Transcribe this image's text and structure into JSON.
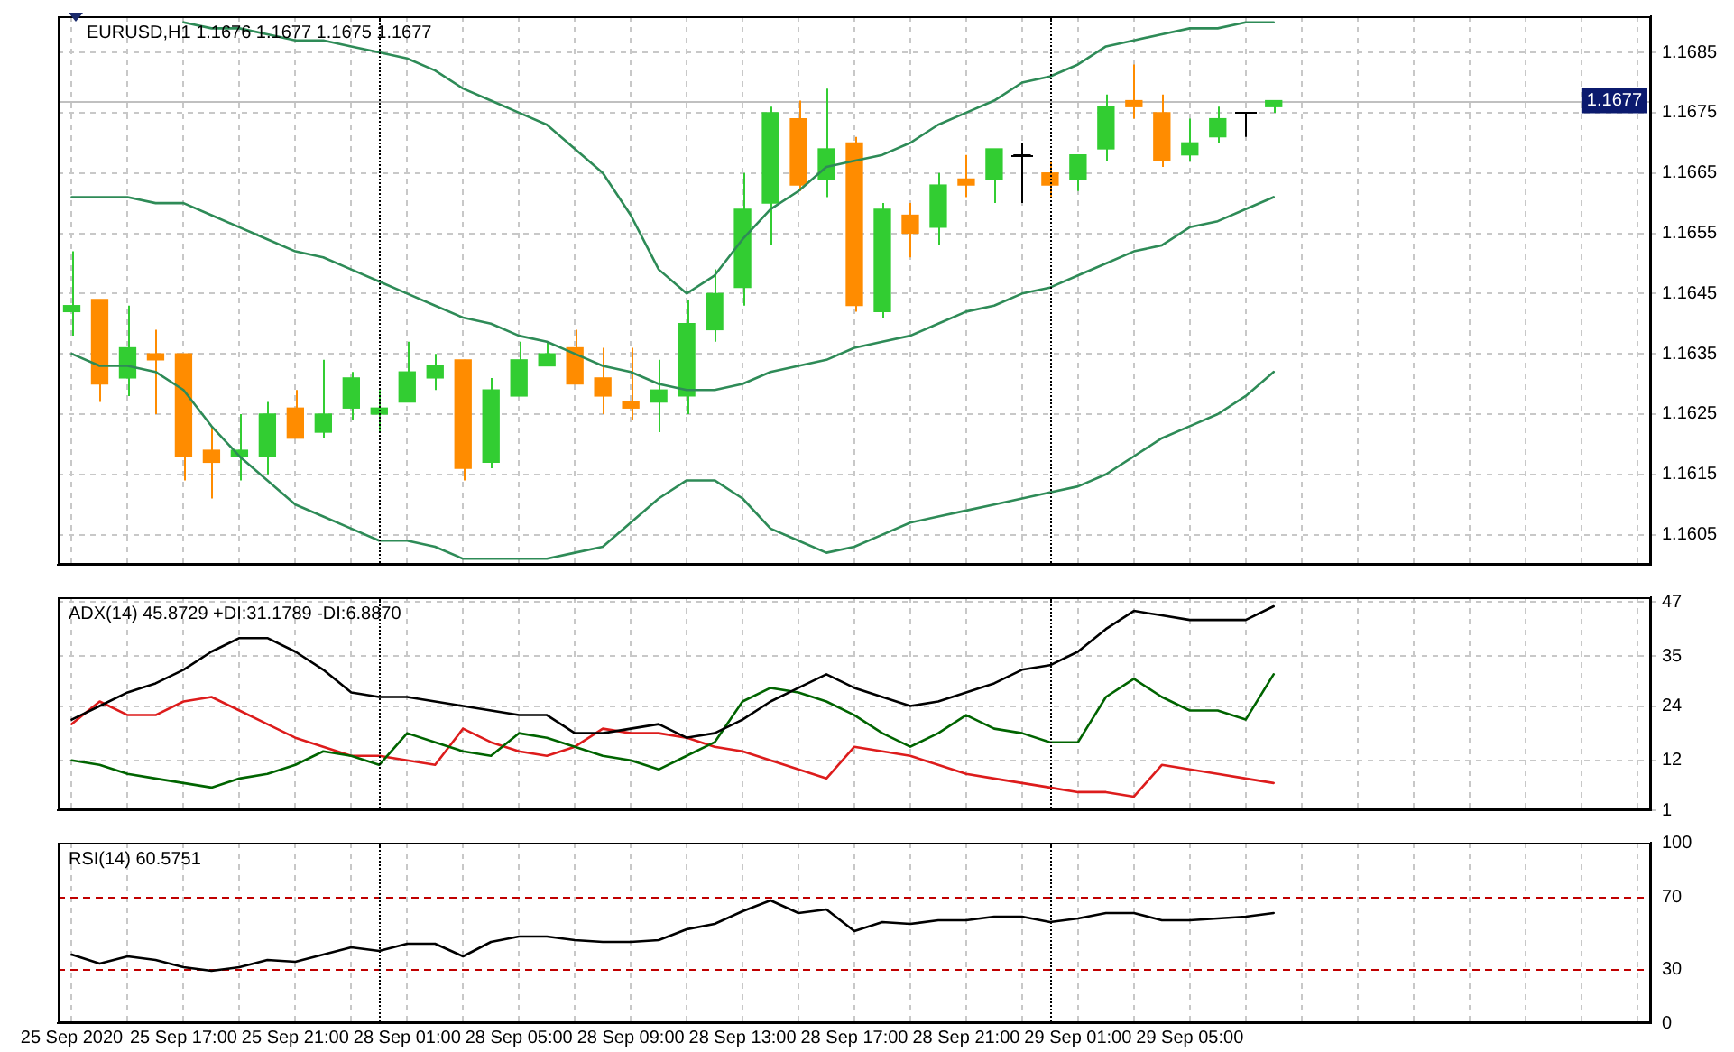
{
  "chart_data": [
    {
      "type": "candlestick",
      "title": "EURUSD,H1 1.1676 1.1677 1.1675 1.1677",
      "categories": [
        null,
        null,
        null,
        null,
        null,
        null,
        null,
        null,
        null,
        null,
        null,
        null,
        null,
        null,
        null,
        null,
        null,
        null,
        null,
        null,
        null,
        null,
        null,
        null,
        null,
        null,
        null,
        null,
        null,
        null,
        null,
        null,
        null,
        null,
        null,
        null,
        null,
        null,
        null,
        null,
        null,
        null,
        null,
        null,
        null,
        null,
        null,
        null,
        null,
        null,
        null,
        null,
        null,
        null,
        null,
        null,
        null
      ],
      "ohlc": [
        [
          1.1642,
          1.1652,
          1.1638,
          1.1643
        ],
        [
          1.1644,
          1.1644,
          1.1627,
          1.163
        ],
        [
          1.1631,
          1.1643,
          1.1628,
          1.1636
        ],
        [
          1.1635,
          1.1639,
          1.1625,
          1.1634
        ],
        [
          1.1635,
          1.1635,
          1.1614,
          1.1618
        ],
        [
          1.1619,
          1.1623,
          1.1611,
          1.1617
        ],
        [
          1.1618,
          1.1625,
          1.1614,
          1.1619
        ],
        [
          1.1618,
          1.1627,
          1.1615,
          1.1625
        ],
        [
          1.1626,
          1.1629,
          1.1621,
          1.1621
        ],
        [
          1.1622,
          1.1634,
          1.1621,
          1.1625
        ],
        [
          1.1626,
          1.1632,
          1.1624,
          1.1631
        ],
        [
          1.1625,
          1.1629,
          1.1622,
          1.1626
        ],
        [
          1.1627,
          1.1637,
          1.1627,
          1.1632
        ],
        [
          1.1631,
          1.1635,
          1.1629,
          1.1633
        ],
        [
          1.1634,
          1.1634,
          1.1614,
          1.1616
        ],
        [
          1.1617,
          1.1631,
          1.1616,
          1.1629
        ],
        [
          1.1628,
          1.1637,
          1.1628,
          1.1634
        ],
        [
          1.1633,
          1.1637,
          1.1633,
          1.1635
        ],
        [
          1.1636,
          1.1639,
          1.163,
          1.163
        ],
        [
          1.1631,
          1.1636,
          1.1625,
          1.1628
        ],
        [
          1.1627,
          1.1636,
          1.1624,
          1.1626
        ],
        [
          1.1627,
          1.1634,
          1.1622,
          1.1629
        ],
        [
          1.1628,
          1.1644,
          1.1625,
          1.164
        ],
        [
          1.1639,
          1.1649,
          1.1637,
          1.1645
        ],
        [
          1.1646,
          1.1665,
          1.1643,
          1.1659
        ],
        [
          1.166,
          1.1676,
          1.1653,
          1.1675
        ],
        [
          1.1674,
          1.1677,
          1.1662,
          1.1663
        ],
        [
          1.1664,
          1.1679,
          1.1661,
          1.1669
        ],
        [
          1.167,
          1.1671,
          1.1642,
          1.1643
        ],
        [
          1.1642,
          1.166,
          1.1641,
          1.1659
        ],
        [
          1.1658,
          1.166,
          1.1651,
          1.1655
        ],
        [
          1.1656,
          1.1665,
          1.1653,
          1.1663
        ],
        [
          1.1664,
          1.1668,
          1.1661,
          1.1663
        ],
        [
          1.1664,
          1.1669,
          1.166,
          1.1669
        ],
        [
          1.1668,
          1.167,
          1.166,
          1.1668
        ],
        [
          1.1665,
          1.1667,
          1.1661,
          1.1663
        ],
        [
          1.1664,
          1.1668,
          1.1662,
          1.1668
        ],
        [
          1.1669,
          1.1678,
          1.1667,
          1.1676
        ],
        [
          1.1677,
          1.1683,
          1.1674,
          1.1676
        ],
        [
          1.1675,
          1.1678,
          1.1666,
          1.1667
        ],
        [
          1.1668,
          1.1674,
          1.1667,
          1.167
        ],
        [
          1.1671,
          1.1676,
          1.167,
          1.1674
        ],
        [
          1.1675,
          1.1675,
          1.1671,
          1.1675
        ],
        [
          1.1676,
          1.1677,
          1.1675,
          1.1677
        ],
        null,
        null,
        null,
        null,
        null,
        null,
        null,
        null,
        null,
        null,
        null,
        null,
        null
      ],
      "colors": [
        "#32cd32",
        "#ff8c00",
        "#32cd32",
        "#ff8c00",
        "#ff8c00",
        "#ff8c00",
        "#32cd32",
        "#32cd32",
        "#ff8c00",
        "#32cd32",
        "#32cd32",
        "#32cd32",
        "#32cd32",
        "#32cd32",
        "#ff8c00",
        "#32cd32",
        "#32cd32",
        "#32cd32",
        "#ff8c00",
        "#ff8c00",
        "#ff8c00",
        "#32cd32",
        "#32cd32",
        "#32cd32",
        "#32cd32",
        "#32cd32",
        "#ff8c00",
        "#32cd32",
        "#ff8c00",
        "#32cd32",
        "#ff8c00",
        "#32cd32",
        "#ff8c00",
        "#32cd32",
        "#000000",
        "#ff8c00",
        "#32cd32",
        "#32cd32",
        "#ff8c00",
        "#ff8c00",
        "#32cd32",
        "#32cd32",
        "#000000",
        "#32cd32",
        null,
        null,
        null,
        null,
        null,
        null,
        null,
        null,
        null,
        null,
        null,
        null,
        null
      ],
      "series": [
        {
          "type": "line",
          "color": "#2e8b57",
          "values": [
            null,
            null,
            null,
            null,
            1.169,
            1.1689,
            1.1689,
            1.1688,
            1.1687,
            1.1687,
            1.1686,
            1.1685,
            1.1684,
            1.1682,
            1.1679,
            1.1677,
            1.1675,
            1.1673,
            1.1669,
            1.1665,
            1.1658,
            1.1649,
            1.1645,
            1.1648,
            1.1654,
            1.1659,
            1.1662,
            1.1666,
            1.1667,
            1.1668,
            1.167,
            1.1673,
            1.1675,
            1.1677,
            1.168,
            1.1681,
            1.1683,
            1.1686,
            1.1687,
            1.1688,
            1.1689,
            1.1689,
            1.169,
            1.169,
            null,
            null,
            null,
            null,
            null,
            null,
            null,
            null,
            null,
            null,
            null,
            null,
            null
          ]
        },
        {
          "type": "line",
          "color": "#2e8b57",
          "values": [
            1.1661,
            1.1661,
            1.1661,
            1.166,
            1.166,
            1.1658,
            1.1656,
            1.1654,
            1.1652,
            1.1651,
            1.1649,
            1.1647,
            1.1645,
            1.1643,
            1.1641,
            1.164,
            1.1638,
            1.1637,
            1.1635,
            1.1633,
            1.1632,
            1.163,
            1.1629,
            1.1629,
            1.163,
            1.1632,
            1.1633,
            1.1634,
            1.1636,
            1.1637,
            1.1638,
            1.164,
            1.1642,
            1.1643,
            1.1645,
            1.1646,
            1.1648,
            1.165,
            1.1652,
            1.1653,
            1.1656,
            1.1657,
            1.1659,
            1.1661,
            null,
            null,
            null,
            null,
            null,
            null,
            null,
            null,
            null,
            null,
            null,
            null,
            null
          ]
        },
        {
          "type": "line",
          "color": "#2e8b57",
          "values": [
            1.1635,
            1.1633,
            1.1633,
            1.1632,
            1.1629,
            1.1623,
            1.1618,
            1.1614,
            1.161,
            1.1608,
            1.1606,
            1.1604,
            1.1604,
            1.1603,
            1.1601,
            1.1601,
            1.1601,
            1.1601,
            1.1602,
            1.1603,
            1.1607,
            1.1611,
            1.1614,
            1.1614,
            1.1611,
            1.1606,
            1.1604,
            1.1602,
            1.1603,
            1.1605,
            1.1607,
            1.1608,
            1.1609,
            1.161,
            1.1611,
            1.1612,
            1.1613,
            1.1615,
            1.1618,
            1.1621,
            1.1623,
            1.1625,
            1.1628,
            1.1632,
            null,
            null,
            null,
            null,
            null,
            null,
            null,
            null,
            null,
            null,
            null,
            null,
            null
          ]
        }
      ],
      "ylim": [
        1.16,
        1.1691
      ],
      "yticks": [
        1.1605,
        1.1615,
        1.1625,
        1.1635,
        1.1645,
        1.1655,
        1.1665,
        1.1675,
        1.1685
      ],
      "tick_labels": "y",
      "grid": true,
      "legend": false,
      "ref_lines": [
        {
          "axis": "y",
          "value": 1.1677,
          "label": "1.1677",
          "color": "#c0c0c0"
        }
      ]
    },
    {
      "type": "line",
      "title": "ADX(14) 45.8729 +DI:31.1789 -DI:6.8870",
      "categories": [
        null,
        null,
        null,
        null,
        null,
        null,
        null,
        null,
        null,
        null,
        null,
        null,
        null,
        null,
        null,
        null,
        null,
        null,
        null,
        null,
        null,
        null,
        null,
        null,
        null,
        null,
        null,
        null,
        null,
        null,
        null,
        null,
        null,
        null,
        null,
        null,
        null,
        null,
        null,
        null,
        null,
        null,
        null,
        null,
        null,
        null,
        null,
        null,
        null,
        null,
        null,
        null,
        null,
        null,
        null,
        null,
        null
      ],
      "series": [
        {
          "color": "#000000",
          "values": [
            21,
            24,
            27,
            29,
            32,
            36,
            39,
            39,
            36,
            32,
            27,
            26,
            26,
            25,
            24,
            23,
            22,
            22,
            18,
            18,
            19,
            20,
            17,
            18,
            21,
            25,
            28,
            31,
            28,
            26,
            24,
            25,
            27,
            29,
            32,
            33,
            36,
            41,
            45,
            44,
            43,
            43,
            43,
            46,
            null,
            null,
            null,
            null,
            null,
            null,
            null,
            null,
            null,
            null,
            null,
            null,
            null
          ]
        },
        {
          "color": "#006400",
          "values": [
            12,
            11,
            9,
            8,
            7,
            6,
            8,
            9,
            11,
            14,
            13,
            11,
            18,
            16,
            14,
            13,
            18,
            17,
            15,
            13,
            12,
            10,
            13,
            16,
            25,
            28,
            27,
            25,
            22,
            18,
            15,
            18,
            22,
            19,
            18,
            16,
            16,
            26,
            30,
            26,
            23,
            23,
            21,
            31,
            null,
            null,
            null,
            null,
            null,
            null,
            null,
            null,
            null,
            null,
            null,
            null,
            null
          ]
        },
        {
          "color": "#dd1c1c",
          "values": [
            20,
            25,
            22,
            22,
            25,
            26,
            23,
            20,
            17,
            15,
            13,
            13,
            12,
            11,
            19,
            16,
            14,
            13,
            15,
            19,
            18,
            18,
            17,
            15,
            14,
            12,
            10,
            8,
            15,
            14,
            13,
            11,
            9,
            8,
            7,
            6,
            5,
            5,
            4,
            11,
            10,
            9,
            8,
            7,
            null,
            null,
            null,
            null,
            null,
            null,
            null,
            null,
            null,
            null,
            null,
            null,
            null
          ]
        }
      ],
      "ylim": [
        1,
        48
      ],
      "yticks": [
        1,
        12,
        24,
        35,
        47
      ],
      "tick_labels": "y",
      "grid": true,
      "legend": false
    },
    {
      "type": "line",
      "title": "RSI(14) 60.5751",
      "categories": [
        "25 Sep 2020",
        null,
        null,
        null,
        "25 Sep 17:00",
        null,
        null,
        null,
        "25 Sep 21:00",
        null,
        null,
        null,
        "28 Sep 01:00",
        null,
        null,
        null,
        "28 Sep 05:00",
        null,
        null,
        null,
        "28 Sep 09:00",
        null,
        null,
        null,
        "28 Sep 13:00",
        null,
        null,
        null,
        "28 Sep 17:00",
        null,
        null,
        null,
        "28 Sep 21:00",
        null,
        null,
        null,
        "29 Sep 01:00",
        null,
        null,
        null,
        "29 Sep 05:00",
        null,
        null,
        null,
        null,
        null,
        null,
        null,
        null,
        null,
        null,
        null,
        null,
        null,
        null,
        null,
        null
      ],
      "series": [
        {
          "color": "#000000",
          "values": [
            38,
            33,
            37,
            35,
            31,
            29,
            31,
            35,
            34,
            38,
            42,
            40,
            44,
            44,
            37,
            45,
            48,
            48,
            46,
            45,
            45,
            46,
            52,
            55,
            62,
            68,
            61,
            63,
            51,
            56,
            55,
            57,
            57,
            59,
            59,
            56,
            58,
            61,
            61,
            57,
            57,
            58,
            59,
            61,
            null,
            null,
            null,
            null,
            null,
            null,
            null,
            null,
            null,
            null,
            null,
            null,
            null
          ]
        }
      ],
      "ylim": [
        0,
        100
      ],
      "yticks": [
        0,
        30,
        70,
        100
      ],
      "grid": "x",
      "legend": false,
      "ref_lines": [
        {
          "axis": "y",
          "value": 70,
          "color": "#c00000",
          "line_style": "dashed"
        },
        {
          "axis": "y",
          "value": 30,
          "color": "#c00000",
          "line_style": "dashed"
        }
      ]
    }
  ]
}
